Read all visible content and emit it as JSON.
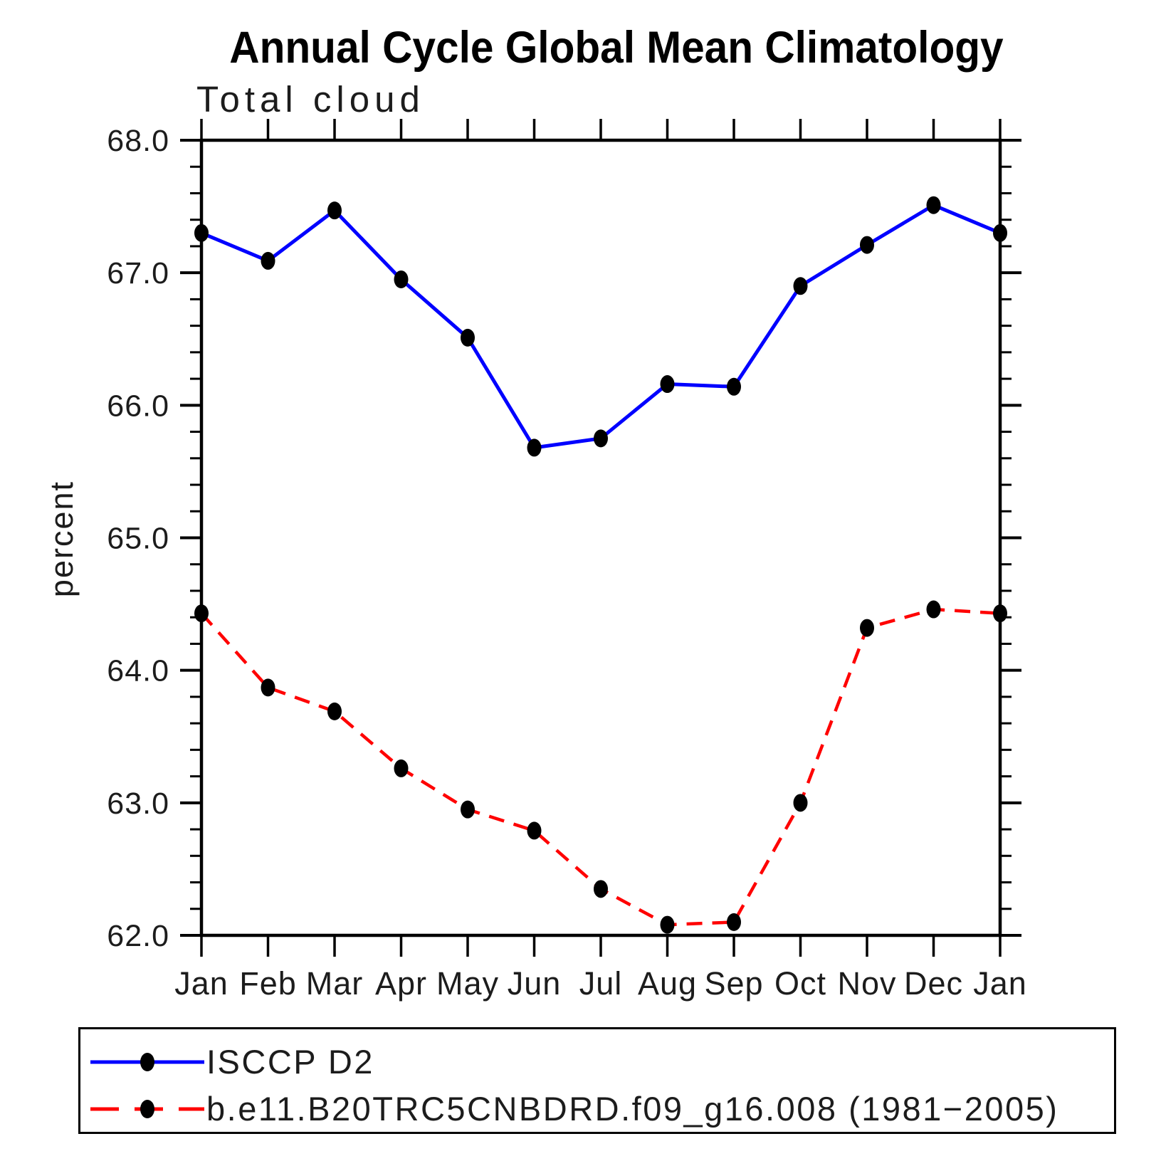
{
  "chart": {
    "title": "Annual Cycle Global Mean Climatology",
    "subtitle": "Total cloud",
    "ylabel": "percent"
  },
  "chart_data": {
    "type": "line",
    "title": "Annual Cycle Global Mean Climatology",
    "subtitle": "Total cloud",
    "xlabel": "",
    "ylabel": "percent",
    "categories": [
      "Jan",
      "Feb",
      "Mar",
      "Apr",
      "May",
      "Jun",
      "Jul",
      "Aug",
      "Sep",
      "Oct",
      "Nov",
      "Dec",
      "Jan"
    ],
    "series": [
      {
        "name": "ISCCP D2",
        "color": "#0000ff",
        "line_style": "solid",
        "marker": "filled-circle",
        "marker_color": "#000000",
        "values": [
          67.3,
          67.09,
          67.47,
          66.95,
          66.51,
          65.68,
          65.75,
          66.16,
          66.14,
          66.9,
          67.21,
          67.51,
          67.3
        ]
      },
      {
        "name": "b.e11.B20TRC5CNBDRD.f09_g16.008 (1981−2005)",
        "color": "#ff0000",
        "line_style": "dashed",
        "marker": "filled-circle",
        "marker_color": "#000000",
        "values": [
          64.43,
          63.87,
          63.69,
          63.26,
          62.95,
          62.79,
          62.35,
          62.08,
          62.1,
          63.0,
          64.32,
          64.46,
          64.43
        ]
      }
    ],
    "ylim": [
      62.0,
      68.0
    ],
    "ytick_values": [
      68,
      67,
      66,
      65,
      64,
      63,
      62
    ],
    "ytick_labels": [
      "68.0",
      "67.0",
      "66.0",
      "65.0",
      "64.0",
      "63.0",
      "62.0"
    ],
    "minor_tick_step": 0.2,
    "grid": false,
    "ticks": "outward-all-sides",
    "legend_position": "bottom-box"
  }
}
